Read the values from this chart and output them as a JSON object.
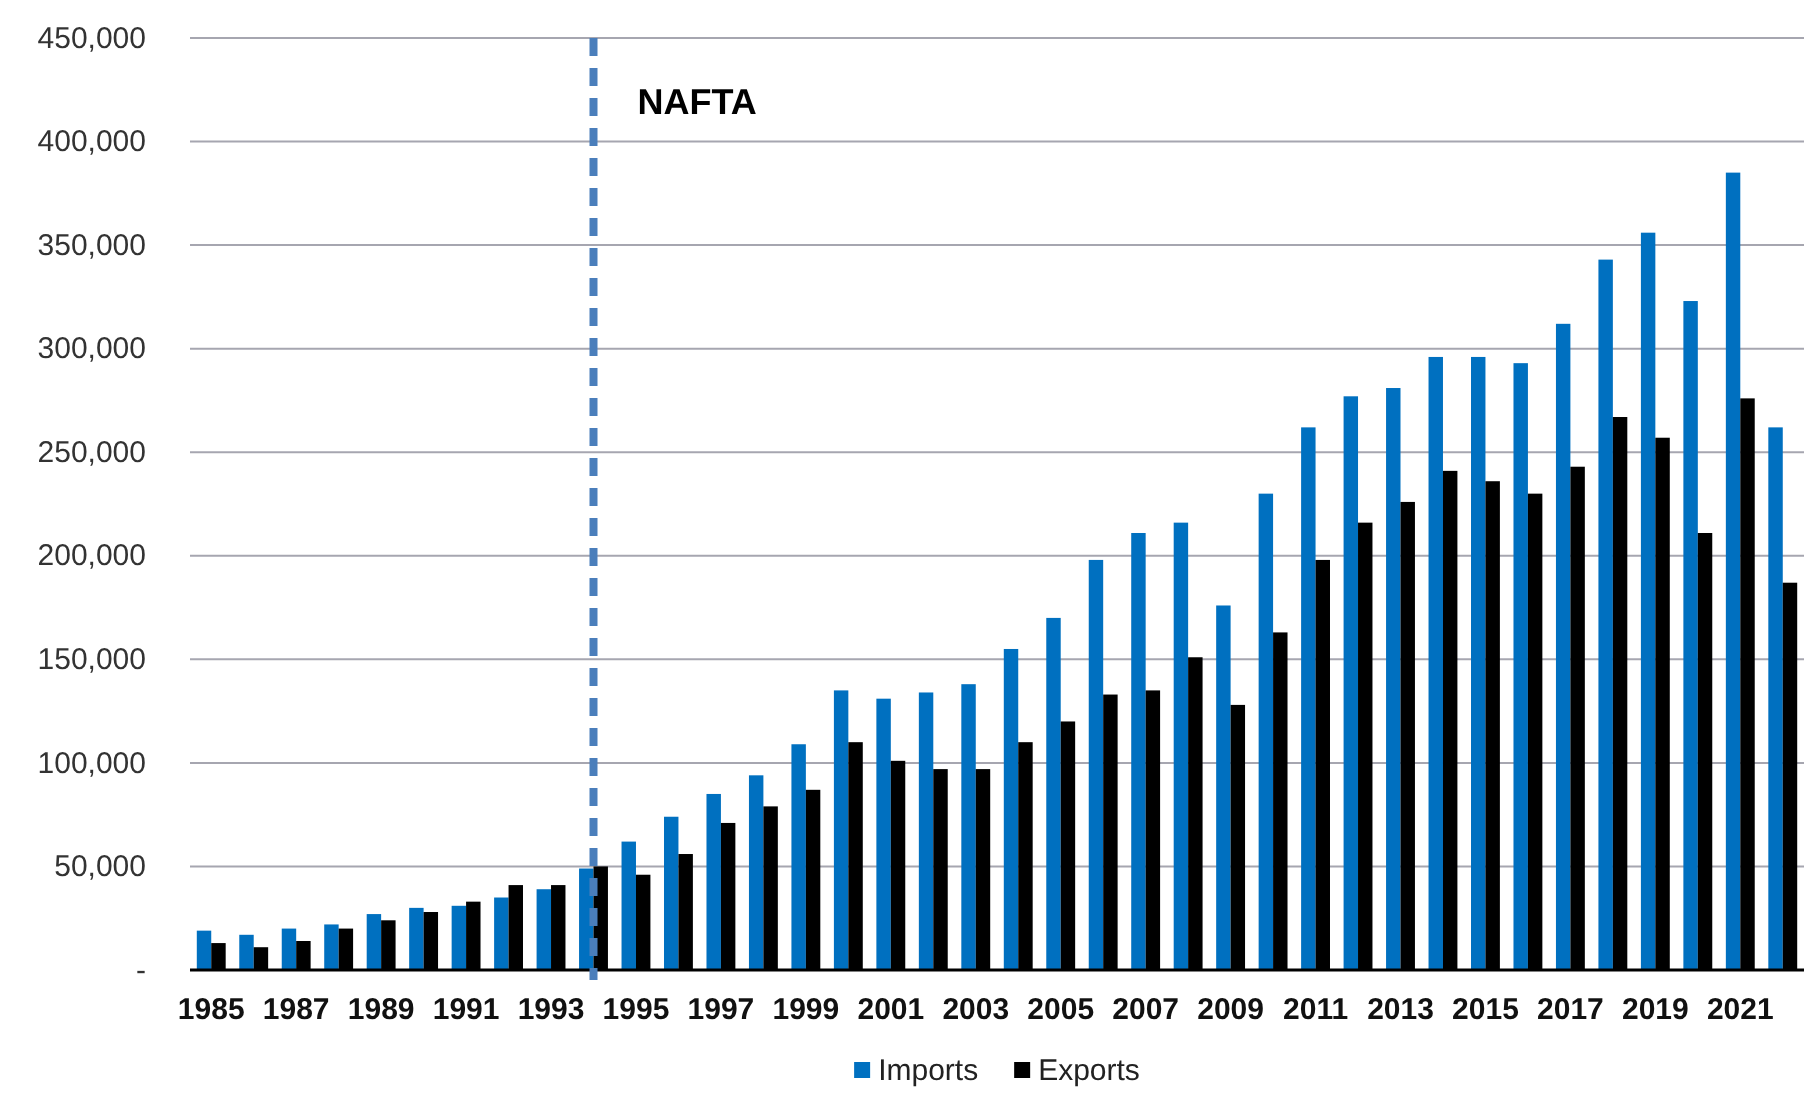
{
  "chart_data": {
    "type": "bar",
    "x": [
      1985,
      1986,
      1987,
      1988,
      1989,
      1990,
      1991,
      1992,
      1993,
      1994,
      1995,
      1996,
      1997,
      1998,
      1999,
      2000,
      2001,
      2002,
      2003,
      2004,
      2005,
      2006,
      2007,
      2008,
      2009,
      2010,
      2011,
      2012,
      2013,
      2014,
      2015,
      2016,
      2017,
      2018,
      2019,
      2020,
      2021,
      2022
    ],
    "xlim": [
      1984.5,
      2022.5
    ],
    "xticks": [
      1985,
      1987,
      1989,
      1991,
      1993,
      1995,
      1997,
      1999,
      2001,
      2003,
      2005,
      2007,
      2009,
      2011,
      2013,
      2015,
      2017,
      2019,
      2021
    ],
    "series": [
      {
        "name": "Imports",
        "color": "#0070c0",
        "values": [
          19000,
          17000,
          20000,
          22000,
          27000,
          30000,
          31000,
          35000,
          39000,
          49000,
          62000,
          74000,
          85000,
          94000,
          109000,
          135000,
          131000,
          134000,
          138000,
          155000,
          170000,
          198000,
          211000,
          216000,
          176000,
          230000,
          262000,
          277000,
          281000,
          296000,
          296000,
          293000,
          312000,
          343000,
          356000,
          323000,
          385000,
          262000
        ]
      },
      {
        "name": "Exports",
        "color": "#000000",
        "values": [
          13000,
          11000,
          14000,
          20000,
          24000,
          28000,
          33000,
          41000,
          41000,
          50000,
          46000,
          56000,
          71000,
          79000,
          87000,
          110000,
          101000,
          97000,
          97000,
          110000,
          120000,
          133000,
          135000,
          151000,
          128000,
          163000,
          198000,
          216000,
          226000,
          241000,
          236000,
          230000,
          243000,
          267000,
          257000,
          211000,
          276000,
          187000
        ]
      }
    ],
    "ylim": [
      0,
      450000
    ],
    "yticks": [
      {
        "value": 0,
        "label": "-"
      },
      {
        "value": 50000,
        "label": "50,000"
      },
      {
        "value": 100000,
        "label": "100,000"
      },
      {
        "value": 150000,
        "label": "150,000"
      },
      {
        "value": 200000,
        "label": "200,000"
      },
      {
        "value": 250000,
        "label": "250,000"
      },
      {
        "value": 300000,
        "label": "300,000"
      },
      {
        "value": 350000,
        "label": "350,000"
      },
      {
        "value": 400000,
        "label": "400,000"
      },
      {
        "value": 450000,
        "label": "450,000"
      }
    ],
    "grid": "y",
    "legend": "bottom",
    "ref_lines": [
      {
        "axis": "x",
        "value": 1994,
        "label": "NAFTA",
        "color": "#4a7ebb",
        "line_style": "dashed"
      }
    ]
  }
}
